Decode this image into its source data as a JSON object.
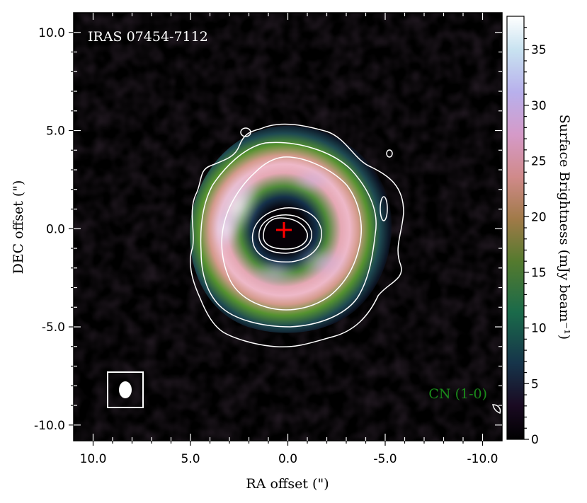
{
  "chart_data": {
    "type": "heatmap",
    "title": "",
    "object_label": "IRAS 07454-7112",
    "line_label": "CN (1-0)",
    "xlabel": "RA offset (\")",
    "ylabel": "DEC offset (\")",
    "colorbar_label": "Surface Brightness (mJy beam⁻¹)",
    "xlim": [
      11.0,
      -11.0
    ],
    "ylim": [
      -10.8,
      11.0
    ],
    "x_inverted": true,
    "x_ticks": [
      10,
      5,
      0,
      -5,
      -10
    ],
    "x_tick_labels": [
      "10.0",
      "5.0",
      "0.0",
      "-5.0",
      "-10.0"
    ],
    "y_ticks": [
      10,
      5,
      0,
      -5,
      -10
    ],
    "y_tick_labels": [
      "10.0",
      "5.0",
      "0.0",
      "-5.0",
      "-10.0"
    ],
    "colorbar_range": [
      0,
      38
    ],
    "colorbar_ticks": [
      0,
      5,
      10,
      15,
      20,
      25,
      30,
      35
    ],
    "colorbar_tick_labels": [
      "0",
      "5",
      "10",
      "15",
      "20",
      "25",
      "30",
      "35"
    ],
    "colormap": "cubehelix",
    "ring": {
      "center": [
        0.0,
        0.0
      ],
      "peak_radius_arcsec": 2.9,
      "width_arcsec": 1.4,
      "outer_radius_arcsec": 5.3,
      "inner_hole_radius_arcsec": 1.1,
      "peak_brightness": 36,
      "brightest_pa_note": "north-east (upper-left) limb"
    },
    "center_marker": {
      "x": 0.0,
      "y": 0.0,
      "symbol": "+",
      "color": "#ff0000"
    },
    "beam": {
      "x": 8.1,
      "y": -8.1,
      "major_arcsec": 0.85,
      "minor_arcsec": 0.65
    },
    "contours": {
      "color": "#ffffff",
      "count": 3
    }
  },
  "colors": {
    "contour": "#ffffff",
    "center_marker": "#ff0000",
    "object_label": "#ffffff",
    "line_label": "#1a8a1a",
    "beam_box": "#ffffff"
  }
}
